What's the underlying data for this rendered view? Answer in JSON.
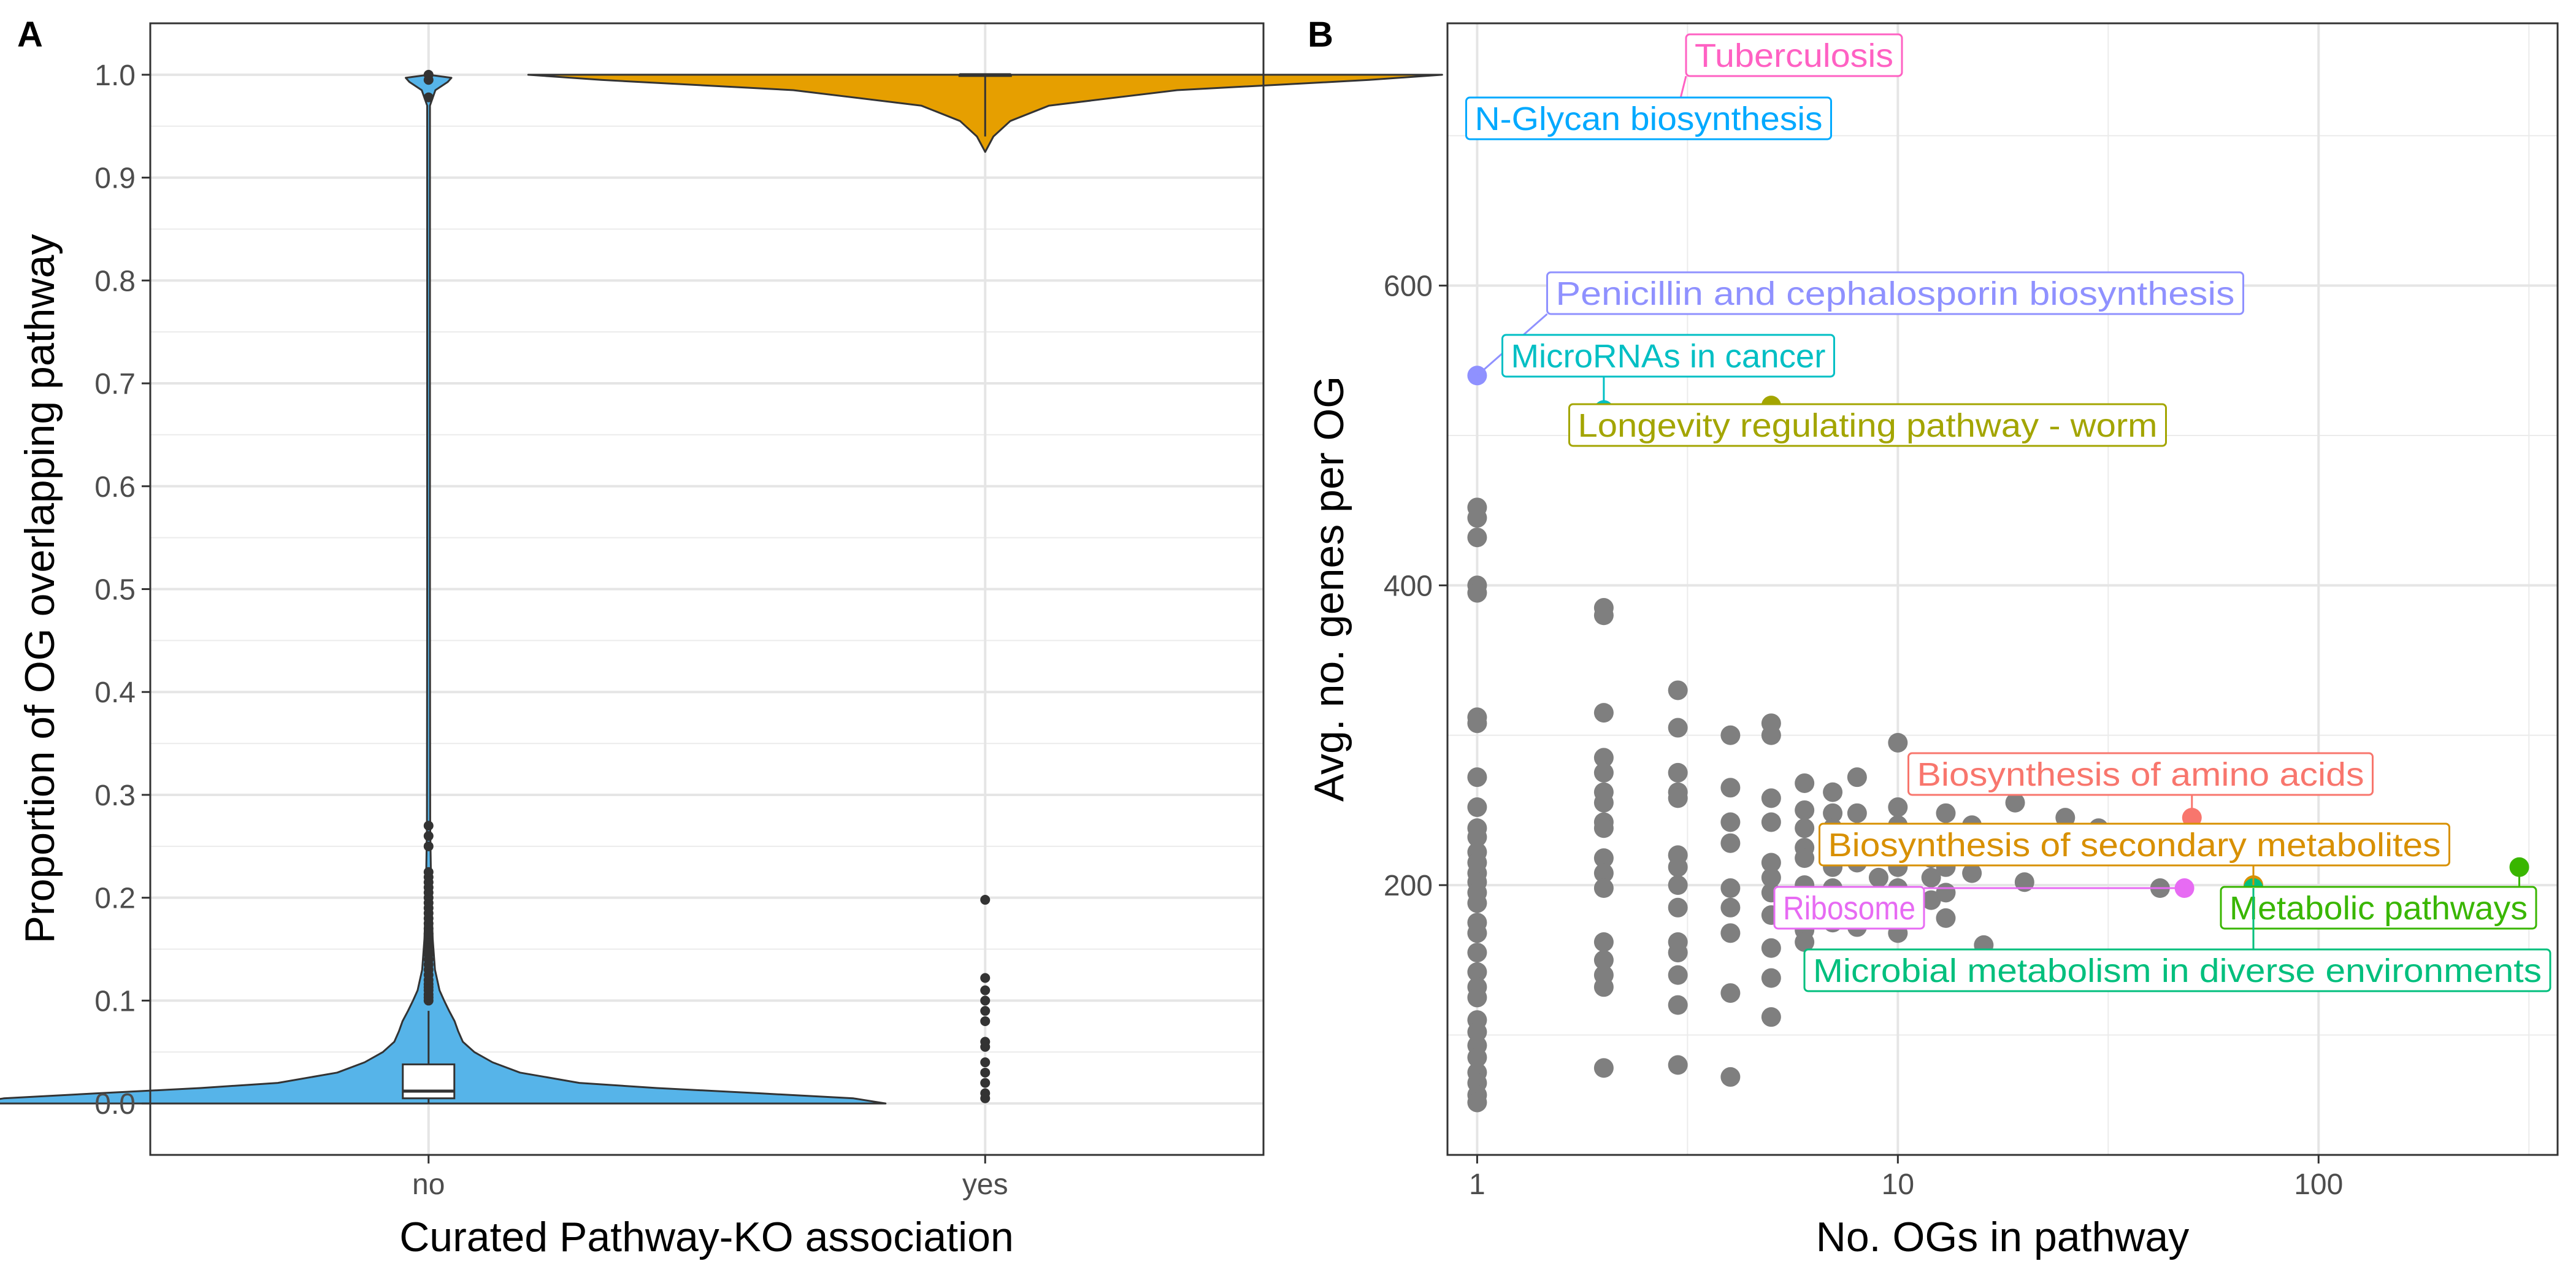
{
  "figure": {
    "panel_a_tag": "A",
    "panel_b_tag": "B"
  },
  "chart_data": [
    {
      "type": "violin",
      "panel": "A",
      "xlabel": "Curated Pathway-KO association",
      "ylabel": "Proportion of OG overlapping pathway",
      "categories": [
        "no",
        "yes"
      ],
      "ylim": [
        -0.05,
        1.05
      ],
      "yticks": [
        0.0,
        0.1,
        0.2,
        0.3,
        0.4,
        0.5,
        0.6,
        0.7,
        0.8,
        0.9,
        1.0
      ],
      "ytick_labels": [
        "0.0",
        "0.1",
        "0.2",
        "0.3",
        "0.4",
        "0.5",
        "0.6",
        "0.7",
        "0.8",
        "0.9",
        "1.0"
      ],
      "grid": true,
      "legend": "none",
      "colors": {
        "no": "#56b4e9",
        "yes": "#e69f00",
        "box": "#ffffff",
        "outline": "#333333"
      },
      "box": {
        "no": {
          "q1": 0.005,
          "median": 0.012,
          "q3": 0.038,
          "whisker_low": 0.0,
          "whisker_high": 0.09
        },
        "yes": {
          "q1": 1.0,
          "median": 1.0,
          "q3": 1.0,
          "whisker_low": 0.94,
          "whisker_high": 1.0
        }
      },
      "density_profile": {
        "no": [
          [
            0.0,
            1.0
          ],
          [
            0.005,
            0.93
          ],
          [
            0.01,
            0.72
          ],
          [
            0.015,
            0.5
          ],
          [
            0.02,
            0.33
          ],
          [
            0.03,
            0.2
          ],
          [
            0.04,
            0.14
          ],
          [
            0.05,
            0.1
          ],
          [
            0.06,
            0.075
          ],
          [
            0.07,
            0.065
          ],
          [
            0.08,
            0.057
          ],
          [
            0.09,
            0.045
          ],
          [
            0.1,
            0.034
          ],
          [
            0.11,
            0.024
          ],
          [
            0.13,
            0.014
          ],
          [
            0.16,
            0.009
          ],
          [
            0.2,
            0.006
          ],
          [
            0.27,
            0.0035
          ],
          [
            0.5,
            0.003
          ],
          [
            0.97,
            0.003
          ],
          [
            0.985,
            0.015
          ],
          [
            0.993,
            0.042
          ],
          [
            0.997,
            0.05
          ],
          [
            1.0,
            0.0
          ]
        ],
        "yes": [
          [
            0.925,
            0.0
          ],
          [
            0.94,
            0.018
          ],
          [
            0.955,
            0.055
          ],
          [
            0.97,
            0.14
          ],
          [
            0.985,
            0.42
          ],
          [
            0.995,
            0.84
          ],
          [
            1.0,
            1.0
          ]
        ]
      },
      "outliers": {
        "no": [
          0.1,
          0.103,
          0.106,
          0.11,
          0.113,
          0.116,
          0.12,
          0.125,
          0.13,
          0.135,
          0.14,
          0.145,
          0.15,
          0.155,
          0.16,
          0.165,
          0.17,
          0.175,
          0.18,
          0.185,
          0.19,
          0.195,
          0.2,
          0.205,
          0.21,
          0.215,
          0.22,
          0.225,
          0.25,
          0.26,
          0.27,
          0.978,
          0.995,
          1.0
        ],
        "yes": [
          0.005,
          0.01,
          0.02,
          0.03,
          0.04,
          0.055,
          0.06,
          0.08,
          0.09,
          0.1,
          0.11,
          0.122,
          0.198
        ]
      }
    },
    {
      "type": "scatter",
      "panel": "B",
      "xlabel": "No. OGs in pathway",
      "ylabel": "Avg. no. genes per OG",
      "xscale": "log10",
      "xlim": [
        0.85,
        370
      ],
      "ylim": [
        20,
        775
      ],
      "xticks": [
        1,
        10,
        100
      ],
      "xtick_labels": [
        "1",
        "10",
        "100"
      ],
      "yticks": [
        200,
        400,
        600
      ],
      "ytick_labels": [
        "200",
        "400",
        "600"
      ],
      "grid": true,
      "legend": "none",
      "point_color": "#7f7f7f",
      "points": [
        [
          1,
          452
        ],
        [
          1,
          445
        ],
        [
          1,
          432
        ],
        [
          1,
          400
        ],
        [
          1,
          395
        ],
        [
          1,
          312
        ],
        [
          1,
          308
        ],
        [
          1,
          272
        ],
        [
          1,
          252
        ],
        [
          1,
          238
        ],
        [
          1,
          232
        ],
        [
          1,
          222
        ],
        [
          1,
          215
        ],
        [
          1,
          208
        ],
        [
          1,
          202
        ],
        [
          1,
          195
        ],
        [
          1,
          188
        ],
        [
          1,
          175
        ],
        [
          1,
          168
        ],
        [
          1,
          155
        ],
        [
          1,
          142
        ],
        [
          1,
          132
        ],
        [
          1,
          125
        ],
        [
          1,
          110
        ],
        [
          1,
          102
        ],
        [
          1,
          93
        ],
        [
          1,
          85
        ],
        [
          1,
          75
        ],
        [
          1,
          68
        ],
        [
          1,
          60
        ],
        [
          1,
          55
        ],
        [
          2,
          385
        ],
        [
          2,
          380
        ],
        [
          2,
          315
        ],
        [
          2,
          285
        ],
        [
          2,
          275
        ],
        [
          2,
          262
        ],
        [
          2,
          255
        ],
        [
          2,
          242
        ],
        [
          2,
          238
        ],
        [
          2,
          218
        ],
        [
          2,
          208
        ],
        [
          2,
          198
        ],
        [
          2,
          162
        ],
        [
          2,
          150
        ],
        [
          2,
          140
        ],
        [
          2,
          132
        ],
        [
          2,
          78
        ],
        [
          3,
          330
        ],
        [
          3,
          305
        ],
        [
          3,
          275
        ],
        [
          3,
          262
        ],
        [
          3,
          258
        ],
        [
          3,
          220
        ],
        [
          3,
          212
        ],
        [
          3,
          200
        ],
        [
          3,
          185
        ],
        [
          3,
          162
        ],
        [
          3,
          155
        ],
        [
          3,
          140
        ],
        [
          3,
          120
        ],
        [
          3,
          80
        ],
        [
          4,
          300
        ],
        [
          4,
          265
        ],
        [
          4,
          242
        ],
        [
          4,
          228
        ],
        [
          4,
          198
        ],
        [
          4,
          185
        ],
        [
          4,
          168
        ],
        [
          4,
          128
        ],
        [
          4,
          72
        ],
        [
          5,
          308
        ],
        [
          5,
          300
        ],
        [
          5,
          258
        ],
        [
          5,
          242
        ],
        [
          5,
          215
        ],
        [
          5,
          205
        ],
        [
          5,
          195
        ],
        [
          5,
          180
        ],
        [
          5,
          158
        ],
        [
          5,
          138
        ],
        [
          5,
          112
        ],
        [
          6,
          268
        ],
        [
          6,
          250
        ],
        [
          6,
          238
        ],
        [
          6,
          225
        ],
        [
          6,
          218
        ],
        [
          6,
          200
        ],
        [
          6,
          185
        ],
        [
          6,
          170
        ],
        [
          6,
          162
        ],
        [
          7,
          262
        ],
        [
          7,
          248
        ],
        [
          7,
          238
        ],
        [
          7,
          225
        ],
        [
          7,
          212
        ],
        [
          7,
          198
        ],
        [
          7,
          185
        ],
        [
          7,
          175
        ],
        [
          8,
          272
        ],
        [
          8,
          248
        ],
        [
          8,
          235
        ],
        [
          8,
          215
        ],
        [
          8,
          190
        ],
        [
          8,
          172
        ],
        [
          9,
          235
        ],
        [
          9,
          222
        ],
        [
          9,
          205
        ],
        [
          10,
          295
        ],
        [
          10,
          252
        ],
        [
          10,
          240
        ],
        [
          10,
          228
        ],
        [
          10,
          212
        ],
        [
          10,
          198
        ],
        [
          10,
          168
        ],
        [
          12,
          230
        ],
        [
          12,
          218
        ],
        [
          12,
          205
        ],
        [
          12,
          190
        ],
        [
          13,
          248
        ],
        [
          13,
          232
        ],
        [
          13,
          212
        ],
        [
          13,
          195
        ],
        [
          13,
          178
        ],
        [
          15,
          240
        ],
        [
          15,
          222
        ],
        [
          15,
          208
        ],
        [
          16,
          160
        ],
        [
          19,
          255
        ],
        [
          20,
          202
        ],
        [
          25,
          245
        ],
        [
          30,
          238
        ],
        [
          42,
          198
        ]
      ],
      "highlighted": [
        {
          "label": "Tuberculosis",
          "x": 3,
          "y": 718,
          "color": "#ff61c3"
        },
        {
          "label": "N-Glycan biosynthesis",
          "x": 1,
          "y": 715,
          "color": "#00a9ff"
        },
        {
          "label": "Penicillin and cephalosporin biosynthesis",
          "x": 1,
          "y": 540,
          "color": "#8f91ff"
        },
        {
          "label": "MicroRNAs in cancer",
          "x": 2,
          "y": 517,
          "color": "#00bfc4"
        },
        {
          "label": "Longevity regulating pathway - worm",
          "x": 5,
          "y": 520,
          "color": "#a3a500"
        },
        {
          "label": "Biosynthesis of amino acids",
          "x": 50,
          "y": 245,
          "color": "#f8766d"
        },
        {
          "label": "Biosynthesis of secondary metabolites",
          "x": 70,
          "y": 200,
          "color": "#d89000"
        },
        {
          "label": "Ribosome",
          "x": 48,
          "y": 198,
          "color": "#e76bf3"
        },
        {
          "label": "Metabolic pathways",
          "x": 300,
          "y": 212,
          "color": "#39b600"
        },
        {
          "label": "Microbial metabolism in diverse environments",
          "x": 70,
          "y": 198,
          "color": "#00bf7d"
        }
      ]
    }
  ]
}
